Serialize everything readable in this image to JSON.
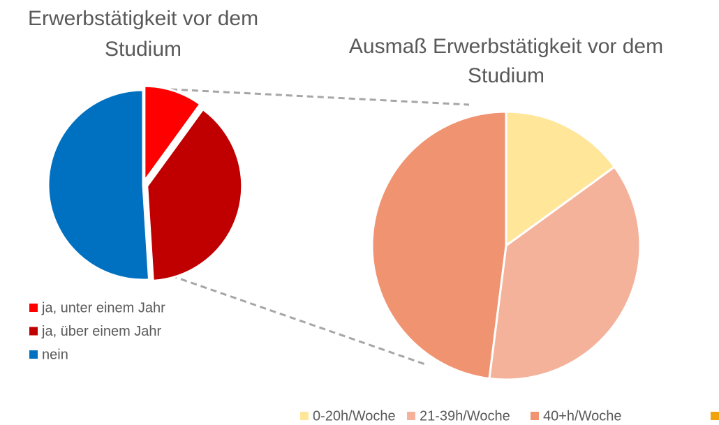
{
  "chart_data": [
    {
      "type": "pie",
      "title": "Erwerbstätigkeit vor dem Studium",
      "categories": [
        "ja, unter einem Jahr",
        "ja, über einem Jahr",
        "nein"
      ],
      "values": [
        10,
        39,
        51
      ],
      "colors": [
        "#ff0000",
        "#c00000",
        "#0070c0"
      ],
      "legend": "bottom-left"
    },
    {
      "type": "pie",
      "title": "Ausmaß Erwerbstätigkeit vor dem Studium",
      "categories": [
        "0-20h/Woche",
        "21-39h/Woche",
        "40+h/Woche",
        null
      ],
      "values": [
        15,
        37,
        48,
        0
      ],
      "colors": [
        "#ffe699",
        "#f4b29b",
        "#f09370",
        "#f0a30a"
      ],
      "legend": "bottom"
    }
  ]
}
